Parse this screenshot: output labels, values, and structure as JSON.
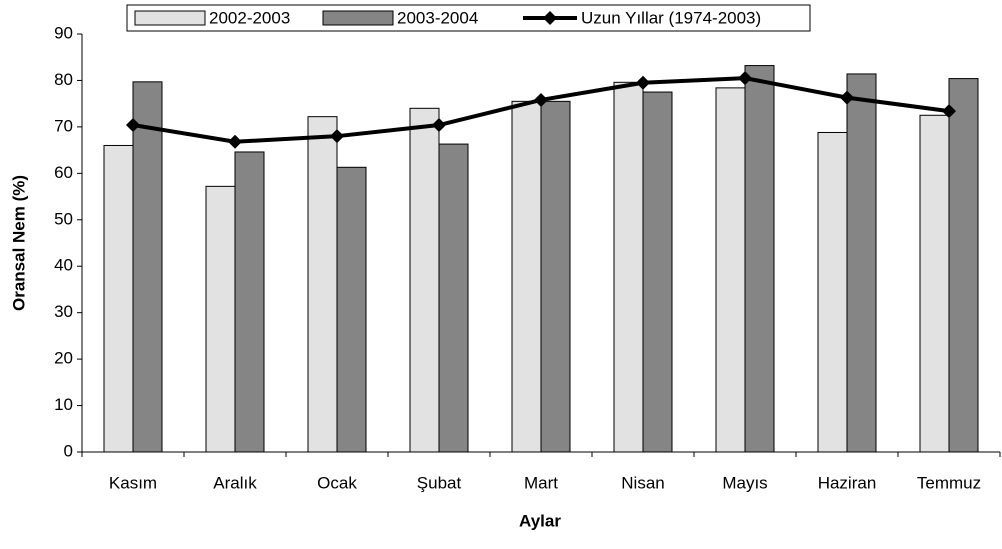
{
  "chart_data": {
    "type": "bar",
    "categories": [
      "Kasım",
      "Aralık",
      "Ocak",
      "Şubat",
      "Mart",
      "Nisan",
      "Mayıs",
      "Haziran",
      "Temmuz"
    ],
    "series": [
      {
        "name": "2002-2003",
        "color": "#e2e2e2",
        "values": [
          66,
          57.2,
          72.2,
          74,
          75.5,
          79.6,
          78.4,
          68.8,
          72.5
        ]
      },
      {
        "name": "2003-2004",
        "color": "#858585",
        "values": [
          79.7,
          64.6,
          61.3,
          66.3,
          75.5,
          77.5,
          83.2,
          81.4,
          80.4
        ]
      },
      {
        "name": "Uzun Yıllar (1974-2003)",
        "color": "#000000",
        "type": "line",
        "values": [
          70.4,
          66.8,
          68,
          70.4,
          75.8,
          79.5,
          80.5,
          76.3,
          73.4
        ]
      }
    ],
    "x_label": "Aylar",
    "y_label": "Oransal Nem (%)",
    "ylim": [
      0,
      90
    ],
    "yticks": [
      0,
      10,
      20,
      30,
      40,
      50,
      60,
      70,
      80,
      90
    ],
    "grid": false,
    "legend": "top"
  }
}
